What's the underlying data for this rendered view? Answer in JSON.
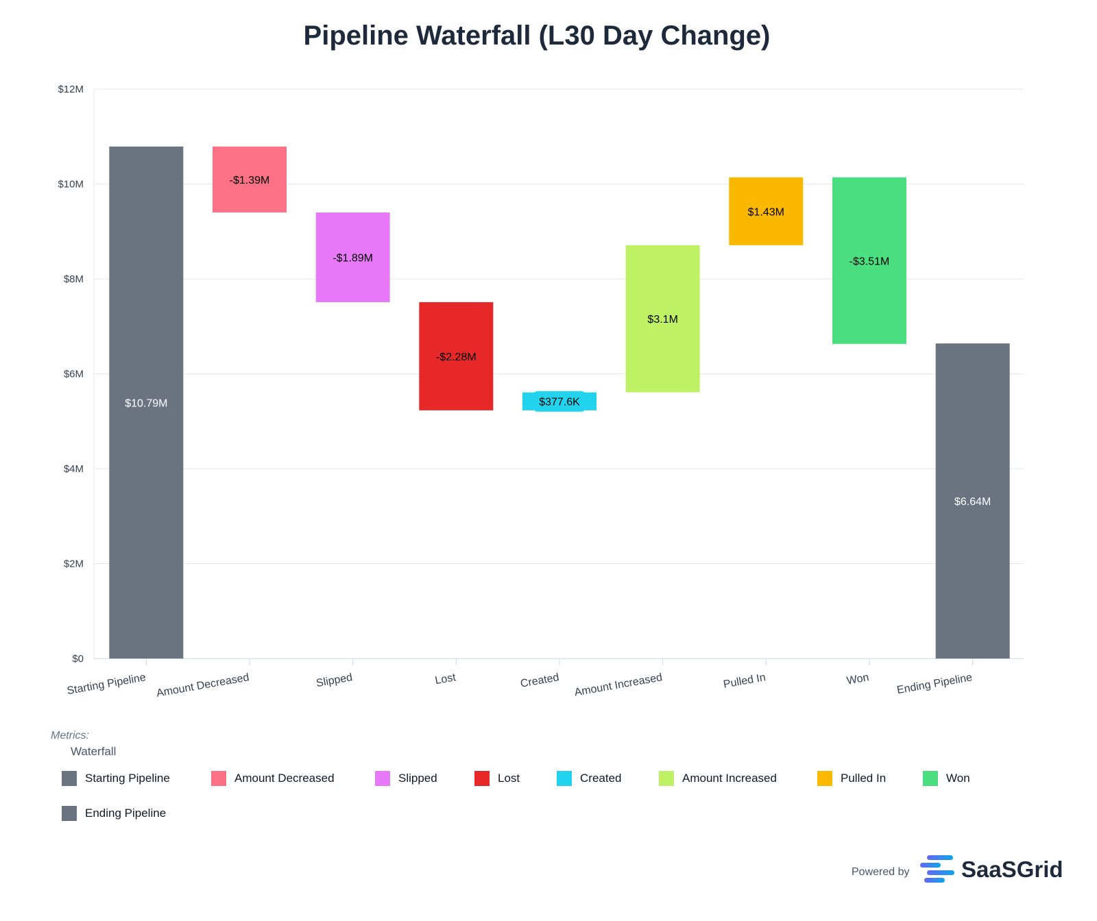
{
  "chart_data": {
    "type": "waterfall",
    "title": "Pipeline Waterfall (L30 Day Change)",
    "ylim": [
      0,
      12000000
    ],
    "yticks": [
      "$0",
      "$2M",
      "$4M",
      "$6M",
      "$8M",
      "$10M",
      "$12M"
    ],
    "grid": true,
    "legend_placement": "bottom",
    "bars": [
      {
        "category": "Starting Pipeline",
        "base": 0,
        "value": 10790000,
        "label": "$10.79M",
        "color": "#6b7280",
        "label_color": "#ffffff"
      },
      {
        "category": "Amount Decreased",
        "base": 10790000,
        "value": -1390000,
        "label": "-$1.39M",
        "color": "#fb7185",
        "label_color": "#000000"
      },
      {
        "category": "Slipped",
        "base": 9400000,
        "value": -1890000,
        "label": "-$1.89M",
        "color": "#e879f9",
        "label_color": "#000000"
      },
      {
        "category": "Lost",
        "base": 7510000,
        "value": -2280000,
        "label": "-$2.28M",
        "color": "#e62828",
        "label_color": "#000000"
      },
      {
        "category": "Created",
        "base": 5230000,
        "value": 377600,
        "label": "$377.6K",
        "color": "#22d3ee",
        "label_color": "#000000"
      },
      {
        "category": "Amount Increased",
        "base": 5610000,
        "value": 3100000,
        "label": "$3.1M",
        "color": "#bef264",
        "label_color": "#000000"
      },
      {
        "category": "Pulled In",
        "base": 8710000,
        "value": 1430000,
        "label": "$1.43M",
        "color": "#fbb800",
        "label_color": "#000000"
      },
      {
        "category": "Won",
        "base": 10140000,
        "value": -3510000,
        "label": "-$3.51M",
        "color": "#4ade80",
        "label_color": "#000000"
      },
      {
        "category": "Ending Pipeline",
        "base": 0,
        "value": 6640000,
        "label": "$6.64M",
        "color": "#6b7280",
        "label_color": "#ffffff"
      }
    ]
  },
  "legend": {
    "metrics_label": "Metrics:",
    "group_label": "Waterfall"
  },
  "footer": {
    "powered_by": "Powered by",
    "brand": "SaaSGrid"
  }
}
